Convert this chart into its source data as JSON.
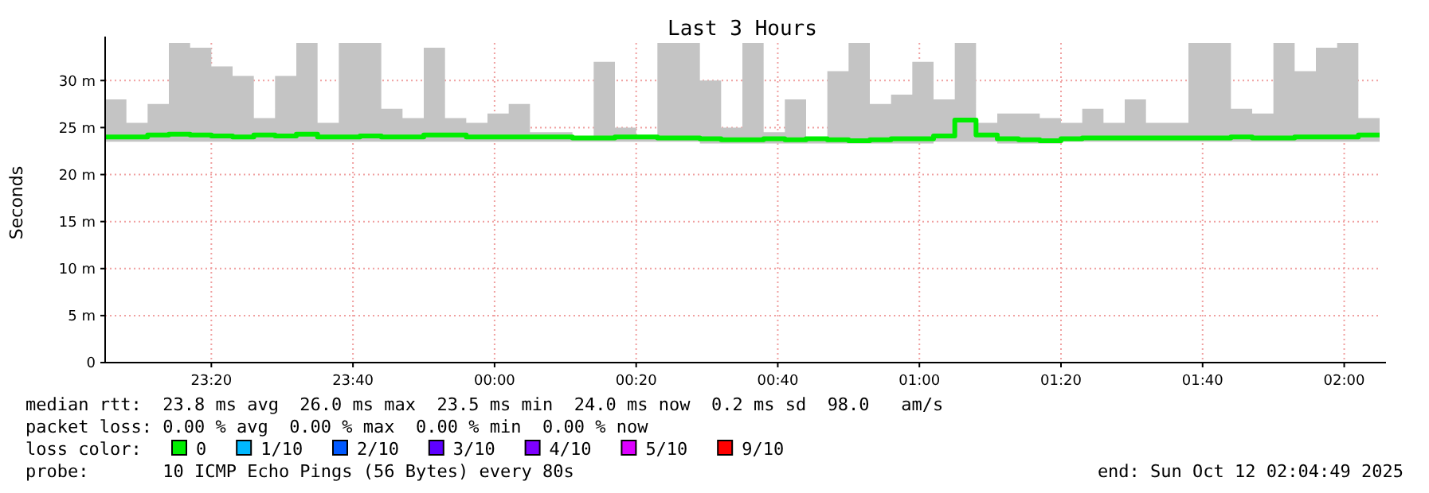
{
  "chart_data": {
    "type": "step",
    "title": "Last 3 Hours",
    "ylabel": "Seconds",
    "x": [
      "2025-10-11T23:05",
      "2025-10-11T23:08",
      "2025-10-11T23:11",
      "2025-10-11T23:14",
      "2025-10-11T23:17",
      "2025-10-11T23:20",
      "2025-10-11T23:23",
      "2025-10-11T23:26",
      "2025-10-11T23:29",
      "2025-10-11T23:32",
      "2025-10-11T23:35",
      "2025-10-11T23:38",
      "2025-10-11T23:41",
      "2025-10-11T23:44",
      "2025-10-11T23:47",
      "2025-10-11T23:50",
      "2025-10-11T23:53",
      "2025-10-11T23:56",
      "2025-10-11T23:59",
      "2025-10-12T00:02",
      "2025-10-12T00:05",
      "2025-10-12T00:08",
      "2025-10-12T00:11",
      "2025-10-12T00:14",
      "2025-10-12T00:17",
      "2025-10-12T00:20",
      "2025-10-12T00:23",
      "2025-10-12T00:26",
      "2025-10-12T00:29",
      "2025-10-12T00:32",
      "2025-10-12T00:35",
      "2025-10-12T00:38",
      "2025-10-12T00:41",
      "2025-10-12T00:44",
      "2025-10-12T00:47",
      "2025-10-12T00:50",
      "2025-10-12T00:53",
      "2025-10-12T00:56",
      "2025-10-12T00:59",
      "2025-10-12T01:02",
      "2025-10-12T01:05",
      "2025-10-12T01:08",
      "2025-10-12T01:11",
      "2025-10-12T01:14",
      "2025-10-12T01:17",
      "2025-10-12T01:20",
      "2025-10-12T01:23",
      "2025-10-12T01:26",
      "2025-10-12T01:29",
      "2025-10-12T01:32",
      "2025-10-12T01:35",
      "2025-10-12T01:38",
      "2025-10-12T01:41",
      "2025-10-12T01:44",
      "2025-10-12T01:47",
      "2025-10-12T01:50",
      "2025-10-12T01:53",
      "2025-10-12T01:56",
      "2025-10-12T01:59",
      "2025-10-12T02:02",
      "2025-10-12T02:05"
    ],
    "series": [
      {
        "name": "0",
        "color": "#00ee00",
        "values": [
          24,
          24,
          24.2,
          24.3,
          24.2,
          24.1,
          24,
          24.2,
          24.1,
          24.3,
          24,
          24,
          24.1,
          24,
          24,
          24.2,
          24.2,
          24,
          24,
          24,
          24,
          24,
          23.9,
          23.9,
          24,
          24,
          23.9,
          23.9,
          23.8,
          23.7,
          23.7,
          23.8,
          23.7,
          23.8,
          23.7,
          23.6,
          23.7,
          23.8,
          23.8,
          24.1,
          25.8,
          24.2,
          23.8,
          23.7,
          23.6,
          23.8,
          23.9,
          23.9,
          23.9,
          23.9,
          23.9,
          23.9,
          23.9,
          24,
          23.9,
          23.9,
          24,
          24,
          24,
          24.2,
          24.2
        ],
        "lower": [
          23.5,
          23.5,
          23.5,
          23.5,
          23.5,
          23.5,
          23.5,
          23.5,
          23.5,
          23.5,
          23.5,
          23.5,
          23.5,
          23.5,
          23.5,
          23.5,
          23.5,
          23.5,
          23.5,
          23.5,
          23.5,
          23.5,
          23.5,
          23.5,
          23.5,
          23.5,
          23.5,
          23.5,
          23.3,
          23.3,
          23.3,
          23.3,
          23.3,
          23.3,
          23.3,
          23.3,
          23.3,
          23.3,
          23.3,
          23.5,
          23.5,
          23.5,
          23.3,
          23.3,
          23.3,
          23.5,
          23.5,
          23.5,
          23.5,
          23.5,
          23.5,
          23.5,
          23.5,
          23.5,
          23.5,
          23.5,
          23.5,
          23.5,
          23.5,
          23.5,
          23.5
        ],
        "upper": [
          28,
          25.5,
          27.5,
          34,
          33.5,
          31.5,
          30.5,
          26,
          30.5,
          34,
          25.5,
          34,
          34,
          27,
          26,
          33.5,
          26,
          25.5,
          26.5,
          27.5,
          24.5,
          24.5,
          24,
          32,
          25,
          24,
          34,
          34,
          30,
          25,
          34,
          24.5,
          28,
          24,
          31,
          34,
          27.5,
          28.5,
          32,
          28,
          34,
          25.5,
          26.5,
          26.5,
          26,
          25.5,
          27,
          25.5,
          28,
          25.5,
          25.5,
          34,
          34,
          27,
          26.5,
          34,
          31,
          33.5,
          34,
          26,
          25
        ]
      },
      {
        "name": "1/10",
        "color": "#00b8ff",
        "values": [
          null,
          null,
          null,
          null,
          null,
          null,
          null,
          null,
          null,
          null,
          null,
          null,
          null,
          null,
          null,
          null,
          null,
          null,
          null,
          null,
          null,
          null,
          null,
          null,
          null,
          null,
          null,
          null,
          null,
          null,
          null,
          null,
          null,
          null,
          null,
          null,
          null,
          null,
          null,
          null,
          null,
          null,
          null,
          null,
          null,
          null,
          null,
          null,
          null,
          null,
          null,
          null,
          null,
          null,
          null,
          null,
          null,
          null,
          null,
          null,
          null
        ]
      },
      {
        "name": "2/10",
        "color": "#0059ff",
        "values": [
          null,
          null,
          null,
          null,
          null,
          null,
          null,
          null,
          null,
          null,
          null,
          null,
          null,
          null,
          null,
          null,
          null,
          null,
          null,
          null,
          null,
          null,
          null,
          null,
          null,
          null,
          null,
          null,
          null,
          null,
          null,
          null,
          null,
          null,
          null,
          null,
          null,
          null,
          null,
          null,
          null,
          null,
          null,
          null,
          null,
          null,
          null,
          null,
          null,
          null,
          null,
          null,
          null,
          null,
          null,
          null,
          null,
          null,
          null,
          null,
          null
        ]
      },
      {
        "name": "3/10",
        "color": "#5e00ff",
        "values": [
          null,
          null,
          null,
          null,
          null,
          null,
          null,
          null,
          null,
          null,
          null,
          null,
          null,
          null,
          null,
          null,
          null,
          null,
          null,
          null,
          null,
          null,
          null,
          null,
          null,
          null,
          null,
          null,
          null,
          null,
          null,
          null,
          null,
          null,
          null,
          null,
          null,
          null,
          null,
          null,
          null,
          null,
          null,
          null,
          null,
          null,
          null,
          null,
          null,
          null,
          null,
          null,
          null,
          null,
          null,
          null,
          null,
          null,
          null,
          null,
          null
        ]
      },
      {
        "name": "4/10",
        "color": "#7e00ff",
        "values": [
          null,
          null,
          null,
          null,
          null,
          null,
          null,
          null,
          null,
          null,
          null,
          null,
          null,
          null,
          null,
          null,
          null,
          null,
          null,
          null,
          null,
          null,
          null,
          null,
          null,
          null,
          null,
          null,
          null,
          null,
          null,
          null,
          null,
          null,
          null,
          null,
          null,
          null,
          null,
          null,
          null,
          null,
          null,
          null,
          null,
          null,
          null,
          null,
          null,
          null,
          null,
          null,
          null,
          null,
          null,
          null,
          null,
          null,
          null,
          null,
          null
        ]
      },
      {
        "name": "5/10",
        "color": "#dd00ff",
        "values": [
          null,
          null,
          null,
          null,
          null,
          null,
          null,
          null,
          null,
          null,
          null,
          null,
          null,
          null,
          null,
          null,
          null,
          null,
          null,
          null,
          null,
          null,
          null,
          null,
          null,
          null,
          null,
          null,
          null,
          null,
          null,
          null,
          null,
          null,
          null,
          null,
          null,
          null,
          null,
          null,
          null,
          null,
          null,
          null,
          null,
          null,
          null,
          null,
          null,
          null,
          null,
          null,
          null,
          null,
          null,
          null,
          null,
          null,
          null,
          null,
          null
        ]
      },
      {
        "name": "9/10",
        "color": "#ff0000",
        "values": [
          null,
          null,
          null,
          null,
          null,
          null,
          null,
          null,
          null,
          null,
          null,
          null,
          null,
          null,
          null,
          null,
          null,
          null,
          null,
          null,
          null,
          null,
          null,
          null,
          null,
          null,
          null,
          null,
          null,
          null,
          null,
          null,
          null,
          null,
          null,
          null,
          null,
          null,
          null,
          null,
          null,
          null,
          null,
          null,
          null,
          null,
          null,
          null,
          null,
          null,
          null,
          null,
          null,
          null,
          null,
          null,
          null,
          null,
          null,
          null,
          null
        ]
      }
    ],
    "xlim": [
      "2025-10-11T23:05",
      "2025-10-12T02:05"
    ],
    "xticks": [
      {
        "value": "2025-10-11T23:20",
        "label": "23:20"
      },
      {
        "value": "2025-10-11T23:40",
        "label": "23:40"
      },
      {
        "value": "2025-10-12T00:00",
        "label": "00:00"
      },
      {
        "value": "2025-10-12T00:20",
        "label": "00:20"
      },
      {
        "value": "2025-10-12T00:40",
        "label": "00:40"
      },
      {
        "value": "2025-10-12T01:00",
        "label": "01:00"
      },
      {
        "value": "2025-10-12T01:20",
        "label": "01:20"
      },
      {
        "value": "2025-10-12T01:40",
        "label": "01:40"
      },
      {
        "value": "2025-10-12T02:00",
        "label": "02:00"
      }
    ],
    "ylim": [
      0,
      34
    ],
    "yticks": [
      {
        "value": 0,
        "label": "0"
      },
      {
        "value": 5,
        "label": "5 m"
      },
      {
        "value": 10,
        "label": "10 m"
      },
      {
        "value": 15,
        "label": "15 m"
      },
      {
        "value": 20,
        "label": "20 m"
      },
      {
        "value": 25,
        "label": "25 m"
      },
      {
        "value": 30,
        "label": "30 m"
      }
    ],
    "grid": true,
    "legend": "bottom",
    "legend_title": "loss color:",
    "annotations": [
      "median rtt:  23.8 ms avg  26.0 ms max  23.5 ms min  24.0 ms now  0.2 ms sd  98.0   am/s",
      "packet loss: 0.00 % avg  0.00 % max  0.00 % min  0.00 % now",
      "probe:       10 ICMP Echo Pings (56 Bytes) every 80s",
      "end: Sun Oct 12 02:04:49 2025"
    ]
  }
}
